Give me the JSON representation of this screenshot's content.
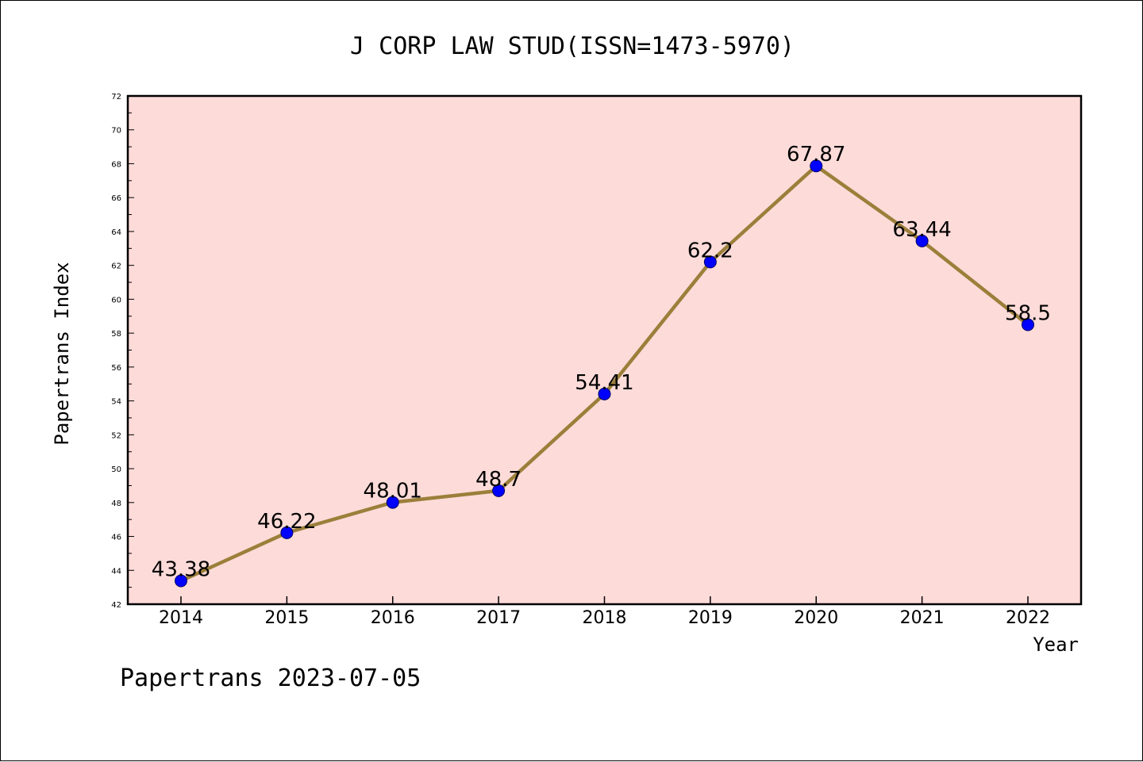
{
  "chart_data": {
    "type": "line",
    "title": "J CORP LAW STUD(ISSN=1473-5970)",
    "xlabel": "Year",
    "ylabel": "Papertrans Index",
    "categories": [
      "2014",
      "2015",
      "2016",
      "2017",
      "2018",
      "2019",
      "2020",
      "2021",
      "2022"
    ],
    "values": [
      43.38,
      46.22,
      48.01,
      48.7,
      54.41,
      62.2,
      67.87,
      63.44,
      58.5
    ],
    "data_labels": [
      "43.38",
      "46.22",
      "48.01",
      "48.7",
      "54.41",
      "62.2",
      "67.87",
      "63.44",
      "58.5"
    ],
    "ylim": [
      42,
      72
    ],
    "yticks": [
      42,
      44,
      46,
      48,
      50,
      52,
      54,
      56,
      58,
      60,
      62,
      64,
      66,
      68,
      70,
      72
    ],
    "grid": false,
    "legend": "none",
    "colors": {
      "plot_background": "#fddbd9",
      "line": "#9b7f3a",
      "marker": "#0000ff"
    }
  },
  "footer": "Papertrans 2023-07-05"
}
